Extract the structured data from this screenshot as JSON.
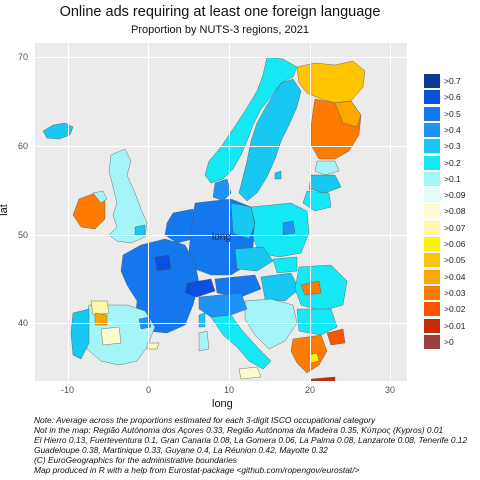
{
  "title": "Online ads requiring at least one foreign language",
  "subtitle": "Proportion by NUTS-3 regions, 2021",
  "axes": {
    "x_label": "long",
    "y_label": "lat",
    "x_ticks": [
      "-10",
      "0",
      "10",
      "20",
      "30"
    ],
    "y_ticks": [
      "40",
      "50",
      "60",
      "70"
    ],
    "x_range": [
      -14.5,
      31.5
    ],
    "y_range": [
      32.5,
      70.5
    ]
  },
  "legend": {
    "labels": [
      ">0.7",
      ">0.6",
      ">0.5",
      ">0.4",
      ">0.3",
      ">0.2",
      ">0.1",
      ">0.09",
      ">0.08",
      ">0.07",
      ">0.06",
      ">0.05",
      ">0.04",
      ">0.03",
      ">0.02",
      ">0.01",
      ">0"
    ],
    "colors": [
      "#0a3a9c",
      "#0b4fe0",
      "#1577ee",
      "#1c93f5",
      "#16c8f2",
      "#15e8f5",
      "#a5f5f8",
      "#e3fdfd",
      "#fffbd0",
      "#fff7a6",
      "#fff200",
      "#ffc400",
      "#ffa500",
      "#ff7a00",
      "#ff5200",
      "#cc2a00",
      "#9e3d3d"
    ]
  },
  "map": {
    "type": "choropleth",
    "ocean_color": "#ebebeb",
    "regions_described": [
      {
        "area": "Finland (central/south)",
        "class": ">0.04 to >0.05"
      },
      {
        "area": "Finland (north, Lapland)",
        "class": ">0.05"
      },
      {
        "area": "Iceland",
        "class": ">0.2"
      },
      {
        "area": "Norway",
        "class": ">0.2"
      },
      {
        "area": "Sweden",
        "class": ">0.2 to >0.3"
      },
      {
        "area": "Ireland",
        "class": ">0.03"
      },
      {
        "area": "United Kingdom",
        "class": ">0.1 to >0.09"
      },
      {
        "area": "France, Belgium, Netherlands, Luxembourg",
        "class": ">0.4 to >0.5"
      },
      {
        "area": "Germany",
        "class": ">0.3 to >0.4"
      },
      {
        "area": "Poland, Baltics",
        "class": ">0.1 to >0.2"
      },
      {
        "area": "Italy",
        "class": ">0.2"
      },
      {
        "area": "Spain, Portugal",
        "class": ">0.1 to >0.2"
      },
      {
        "area": "Greece",
        "class": ">0.03 to >0.04"
      },
      {
        "area": "Balkans, Romania",
        "class": ">0.1 to >0.2"
      }
    ]
  },
  "notes": [
    "Note: Average across the proportions estimated for each 3-digit ISCO occupational category",
    "Not in the map:  Região Autónoma dos Açores 0.33, Região Autónoma da Madeira 0.35, Κύπρος (Kypros) 0.01",
    "  El Hierro 0.13, Fuerteventura 0.1, Gran Canaria 0.08, La Gomera 0.06, La Palma 0.08, Lanzarote 0.08, Tenerife 0.12",
    "  Guadeloupe 0.38, Martinique 0.33, Guyane 0.4, La Réunion 0.42, Mayotte 0.32",
    "(C) EuroGeographics for the administrative boundaries",
    " Map produced in R with a help from Eurostat-package <github.com/ropengov/eurostat/>"
  ]
}
